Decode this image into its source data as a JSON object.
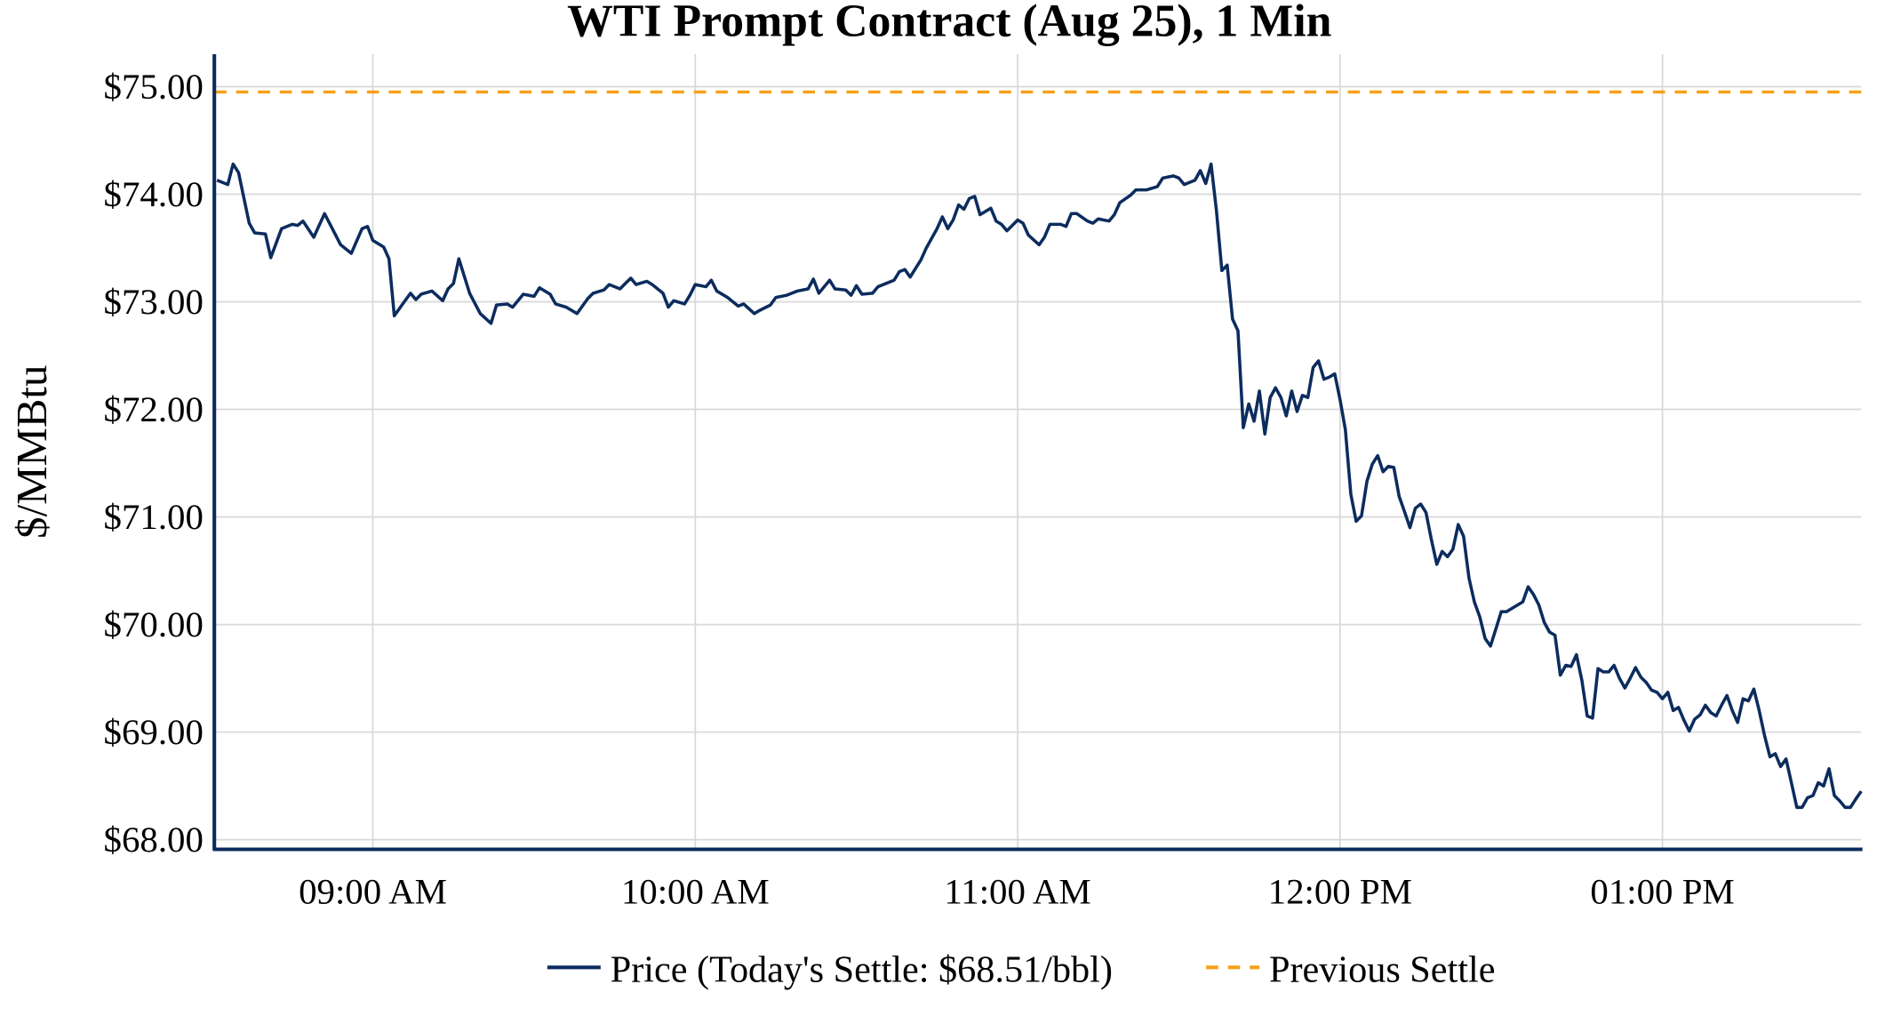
{
  "chart_data": {
    "type": "line",
    "title": "WTI Prompt Contract (Aug 25), 1 Min",
    "xlabel": "",
    "ylabel": "$/MMBtu",
    "xlim": [
      "08:30",
      "13:37"
    ],
    "ylim": [
      67.91,
      75.35
    ],
    "x_ticks": [
      {
        "time": "09:00",
        "label": "09:00 AM"
      },
      {
        "time": "10:00",
        "label": "10:00 AM"
      },
      {
        "time": "11:00",
        "label": "11:00 AM"
      },
      {
        "time": "12:00",
        "label": "12:00 PM"
      },
      {
        "time": "13:00",
        "label": "01:00 PM"
      }
    ],
    "y_ticks": [
      {
        "value": 68,
        "label": "$68.00"
      },
      {
        "value": 69,
        "label": "$69.00"
      },
      {
        "value": 70,
        "label": "$70.00"
      },
      {
        "value": 71,
        "label": "$71.00"
      },
      {
        "value": 72,
        "label": "$72.00"
      },
      {
        "value": 73,
        "label": "$73.00"
      },
      {
        "value": 74,
        "label": "$74.00"
      },
      {
        "value": 75,
        "label": "$75.00"
      }
    ],
    "grid": true,
    "legend_position": "bottom",
    "series": [
      {
        "name": "Price (Today's Settle: $68.51/bbl)",
        "color": "#0c2c5e",
        "style": "solid",
        "times": [
          "08:31",
          "08:33",
          "08:34",
          "08:35",
          "08:37",
          "08:38",
          "08:40",
          "08:41",
          "08:43",
          "08:45",
          "08:46",
          "08:47",
          "08:49",
          "08:51",
          "08:54",
          "08:56",
          "08:58",
          "08:59",
          "09:00",
          "09:02",
          "09:03",
          "09:04",
          "09:06",
          "09:07",
          "09:08",
          "09:09",
          "09:11",
          "09:13",
          "09:14",
          "09:15",
          "09:16",
          "09:18",
          "09:20",
          "09:22",
          "09:23",
          "09:25",
          "09:26",
          "09:28",
          "09:30",
          "09:31",
          "09:33",
          "09:34",
          "09:36",
          "09:38",
          "09:40",
          "09:41",
          "09:43",
          "09:44",
          "09:46",
          "09:47",
          "09:48",
          "09:49",
          "09:51",
          "09:52",
          "09:54",
          "09:55",
          "09:56",
          "09:58",
          "09:59",
          "10:00",
          "10:02",
          "10:03",
          "10:04",
          "10:06",
          "10:08",
          "10:09",
          "10:11",
          "10:12",
          "10:14",
          "10:15",
          "10:17",
          "10:19",
          "10:21",
          "10:22",
          "10:23",
          "10:24",
          "10:25",
          "10:26",
          "10:28",
          "10:29",
          "10:30",
          "10:31",
          "10:33",
          "10:34",
          "10:37",
          "10:38",
          "10:39",
          "10:40",
          "10:42",
          "10:43",
          "10:45",
          "10:46",
          "10:47",
          "10:48",
          "10:49",
          "10:50",
          "10:51",
          "10:52",
          "10:53",
          "10:55",
          "10:56",
          "10:57",
          "10:58",
          "11:00",
          "11:01",
          "11:02",
          "11:04",
          "11:05",
          "11:06",
          "11:08",
          "11:09",
          "11:10",
          "11:11",
          "11:13",
          "11:14",
          "11:15",
          "11:17",
          "11:18",
          "11:19",
          "11:21",
          "11:22",
          "11:24",
          "11:26",
          "11:27",
          "11:29",
          "11:30",
          "11:31",
          "11:33",
          "11:34",
          "11:35",
          "11:36",
          "11:37",
          "11:38",
          "11:39",
          "11:40",
          "11:41",
          "11:42",
          "11:43",
          "11:44",
          "11:45",
          "11:46",
          "11:47",
          "11:48",
          "11:49",
          "11:50",
          "11:51",
          "11:52",
          "11:53",
          "11:54",
          "11:55",
          "11:56",
          "11:57",
          "11:58",
          "11:59",
          "12:00",
          "12:01",
          "12:02",
          "12:03",
          "12:04",
          "12:05",
          "12:06",
          "12:07",
          "12:08",
          "12:09",
          "12:10",
          "12:11",
          "12:12",
          "12:13",
          "12:14",
          "12:15",
          "12:16",
          "12:17",
          "12:18",
          "12:19",
          "12:20",
          "12:21",
          "12:22",
          "12:23",
          "12:24",
          "12:25",
          "12:26",
          "12:27",
          "12:28",
          "12:29",
          "12:30",
          "12:31",
          "12:32",
          "12:34",
          "12:35",
          "12:36",
          "12:37",
          "12:38",
          "12:39",
          "12:40",
          "12:41",
          "12:42",
          "12:43",
          "12:44",
          "12:45",
          "12:46",
          "12:47",
          "12:48",
          "12:49",
          "12:50",
          "12:51",
          "12:52",
          "12:53",
          "12:54",
          "12:55",
          "12:56",
          "12:57",
          "12:58",
          "12:59",
          "13:00",
          "13:01",
          "13:02",
          "13:03",
          "13:04",
          "13:05",
          "13:06",
          "13:07",
          "13:08",
          "13:09",
          "13:10",
          "13:11",
          "13:12",
          "13:13",
          "13:14",
          "13:15",
          "13:16",
          "13:17",
          "13:18",
          "13:19",
          "13:20",
          "13:21",
          "13:22",
          "13:23",
          "13:24",
          "13:25",
          "13:26",
          "13:27",
          "13:28",
          "13:29",
          "13:30",
          "13:31",
          "13:32",
          "13:33",
          "13:34",
          "13:35",
          "13:36",
          "13:37"
        ],
        "prices": [
          74.13,
          74.09,
          74.28,
          74.2,
          73.73,
          73.64,
          73.63,
          73.41,
          73.68,
          73.72,
          73.71,
          73.75,
          73.6,
          73.82,
          73.53,
          73.45,
          73.68,
          73.7,
          73.57,
          73.51,
          73.4,
          72.87,
          73.01,
          73.08,
          73.02,
          73.07,
          73.1,
          73.01,
          73.12,
          73.17,
          73.4,
          73.08,
          72.89,
          72.8,
          72.97,
          72.98,
          72.95,
          73.07,
          73.05,
          73.13,
          73.07,
          72.98,
          72.95,
          72.89,
          73.03,
          73.08,
          73.11,
          73.16,
          73.12,
          73.17,
          73.22,
          73.16,
          73.19,
          73.16,
          73.08,
          72.95,
          73.01,
          72.98,
          73.06,
          73.16,
          73.14,
          73.2,
          73.1,
          73.04,
          72.96,
          72.98,
          72.89,
          72.92,
          72.97,
          73.04,
          73.06,
          73.1,
          73.12,
          73.21,
          73.08,
          73.14,
          73.2,
          73.12,
          73.11,
          73.06,
          73.15,
          73.07,
          73.08,
          73.14,
          73.2,
          73.28,
          73.3,
          73.23,
          73.39,
          73.5,
          73.68,
          73.79,
          73.68,
          73.76,
          73.9,
          73.86,
          73.96,
          73.98,
          73.81,
          73.87,
          73.75,
          73.72,
          73.66,
          73.76,
          73.73,
          73.62,
          73.53,
          73.6,
          73.72,
          73.72,
          73.7,
          73.82,
          73.82,
          73.75,
          73.73,
          73.77,
          73.75,
          73.81,
          73.92,
          73.99,
          74.04,
          74.04,
          74.07,
          74.15,
          74.17,
          74.15,
          74.09,
          74.13,
          74.22,
          74.1,
          74.28,
          73.85,
          73.29,
          73.34,
          72.84,
          72.73,
          71.83,
          72.05,
          71.89,
          72.17,
          71.77,
          72.11,
          72.2,
          72.11,
          71.94,
          72.17,
          71.98,
          72.13,
          72.11,
          72.39,
          72.45,
          72.28,
          72.3,
          72.33,
          72.09,
          71.81,
          71.21,
          70.96,
          71.01,
          71.33,
          71.49,
          71.57,
          71.42,
          71.47,
          71.46,
          71.19,
          71.05,
          70.9,
          71.08,
          71.12,
          71.04,
          70.79,
          70.56,
          70.68,
          70.63,
          70.7,
          70.93,
          70.82,
          70.43,
          70.21,
          70.07,
          69.87,
          69.8,
          69.96,
          70.12,
          70.12,
          70.15,
          70.21,
          70.35,
          70.28,
          70.18,
          70.02,
          69.93,
          69.9,
          69.53,
          69.62,
          69.61,
          69.72,
          69.48,
          69.15,
          69.13,
          69.59,
          69.56,
          69.56,
          69.62,
          69.5,
          69.41,
          69.5,
          69.6,
          69.51,
          69.46,
          69.39,
          69.37,
          69.31,
          69.37,
          69.2,
          69.23,
          69.11,
          69.01,
          69.12,
          69.16,
          69.25,
          69.18,
          69.15,
          69.25,
          69.34,
          69.2,
          69.09,
          69.31,
          69.29,
          69.4,
          69.2,
          68.97,
          68.77,
          68.8,
          68.68,
          68.75,
          68.53,
          68.3,
          68.3,
          68.39,
          68.41,
          68.53,
          68.5,
          68.66,
          68.41,
          68.36,
          68.3,
          68.3,
          68.38,
          68.45
        ]
      },
      {
        "name": "Previous Settle",
        "color": "#f7a11a",
        "style": "dashed",
        "value": 74.95
      }
    ]
  }
}
